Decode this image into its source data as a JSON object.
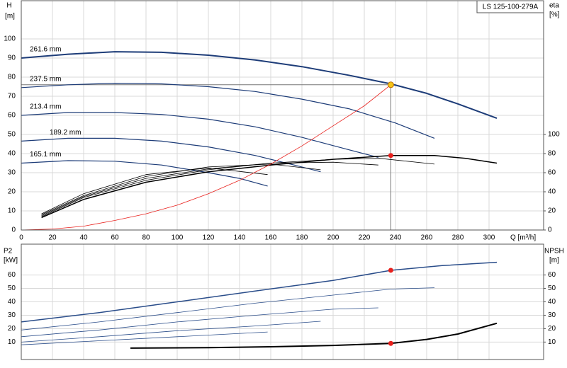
{
  "chart_data": [
    {
      "type": "line",
      "title": "LS 125-100-279A",
      "ylabel": "H",
      "yunit": "[m]",
      "y2label": "eta",
      "y2unit": "[%]",
      "xlabel": "Q [m³/h]",
      "xlim": [
        0,
        335
      ],
      "xticks": [
        0,
        20,
        40,
        60,
        80,
        100,
        120,
        140,
        160,
        180,
        200,
        220,
        240,
        260,
        280,
        300
      ],
      "ylim": [
        0,
        120
      ],
      "yticks": [
        0,
        10,
        20,
        30,
        40,
        50,
        60,
        70,
        80,
        90,
        100
      ],
      "y2lim": [
        0,
        240
      ],
      "y2ticks": [
        0,
        20,
        40,
        60,
        80,
        100
      ],
      "grid": true,
      "series": [
        {
          "name": "261.6 mm",
          "color": "#1d3c78",
          "width": 2,
          "x": [
            0,
            30,
            60,
            90,
            120,
            150,
            180,
            210,
            237,
            260,
            280,
            305
          ],
          "values": [
            90,
            92,
            93.3,
            93,
            91.5,
            89,
            85.5,
            81,
            76.5,
            71.5,
            66,
            58.5
          ]
        },
        {
          "name": "237.5 mm",
          "color": "#1d3c78",
          "width": 1.2,
          "x": [
            0,
            30,
            60,
            90,
            120,
            150,
            180,
            210,
            240,
            265
          ],
          "values": [
            74.5,
            76,
            76.8,
            76.5,
            75,
            72.5,
            68.5,
            63.5,
            56,
            48
          ]
        },
        {
          "name": "213.4 mm",
          "color": "#1d3c78",
          "width": 1.2,
          "x": [
            0,
            30,
            60,
            90,
            120,
            150,
            180,
            210,
            229
          ],
          "values": [
            60,
            61.5,
            61.5,
            60.5,
            58,
            54,
            48.5,
            42,
            38
          ]
        },
        {
          "name": "189.2 mm",
          "color": "#1d3c78",
          "width": 1.2,
          "x": [
            0,
            30,
            60,
            90,
            120,
            150,
            175,
            192
          ],
          "values": [
            46.5,
            48,
            48,
            46.5,
            43.5,
            39,
            34,
            30.5
          ]
        },
        {
          "name": "165.1 mm",
          "color": "#1d3c78",
          "width": 1.2,
          "x": [
            0,
            30,
            60,
            90,
            120,
            140,
            158
          ],
          "values": [
            35,
            36.3,
            36,
            34,
            30,
            27,
            23
          ]
        },
        {
          "axis": "y2",
          "color": "#000000",
          "width": 1.5,
          "x": [
            13,
            40,
            80,
            120,
            160,
            200,
            237,
            265,
            285,
            305
          ],
          "values": [
            13,
            32,
            50,
            61,
            68,
            74,
            78,
            78,
            75,
            70
          ]
        },
        {
          "axis": "y2",
          "color": "#000000",
          "width": 0.8,
          "x": [
            13,
            40,
            80,
            120,
            160,
            200,
            230,
            265
          ],
          "values": [
            14,
            34,
            52,
            63,
            70,
            74,
            75,
            69
          ]
        },
        {
          "axis": "y2",
          "color": "#000000",
          "width": 0.8,
          "x": [
            13,
            40,
            80,
            120,
            160,
            200,
            229
          ],
          "values": [
            15,
            35,
            54,
            64,
            70,
            71,
            68
          ]
        },
        {
          "axis": "y2",
          "color": "#000000",
          "width": 0.8,
          "x": [
            13,
            40,
            80,
            120,
            160,
            192
          ],
          "values": [
            16,
            36,
            56,
            66,
            69,
            63
          ]
        },
        {
          "axis": "y2",
          "color": "#000000",
          "width": 0.8,
          "x": [
            13,
            40,
            80,
            120,
            158
          ],
          "values": [
            17,
            38,
            58,
            65,
            58
          ]
        },
        {
          "color": "#e8201c",
          "width": 0.8,
          "x": [
            0,
            20,
            40,
            60,
            80,
            100,
            120,
            140,
            160,
            180,
            200,
            220,
            237
          ],
          "values": [
            0,
            0.5,
            2,
            5,
            8.5,
            13,
            19,
            26,
            34.5,
            44,
            54.5,
            65,
            76
          ]
        }
      ],
      "operating_point": {
        "x": 237,
        "y": 76,
        "color": "#f5c518"
      },
      "points": [
        {
          "x": 237,
          "y": 78,
          "axis": "y2",
          "color": "#e8201c"
        }
      ]
    },
    {
      "type": "line",
      "ylabel": "P2",
      "yunit": "[kW]",
      "y2label": "NPSH",
      "y2unit": "[m]",
      "xlim": [
        0,
        335
      ],
      "xticks": [
        0,
        20,
        40,
        60,
        80,
        100,
        120,
        140,
        160,
        180,
        200,
        220,
        240,
        260,
        280,
        300
      ],
      "ylim": [
        -3,
        83
      ],
      "yticks": [
        10,
        20,
        30,
        40,
        50,
        60
      ],
      "y2lim": [
        -3,
        83
      ],
      "y2ticks": [
        10,
        20,
        30,
        40,
        50,
        60
      ],
      "grid": true,
      "series": [
        {
          "color": "#2a4d8a",
          "width": 1.5,
          "x": [
            0,
            50,
            100,
            150,
            200,
            237,
            270,
            305
          ],
          "values": [
            25,
            32,
            40,
            48,
            56,
            63.5,
            67,
            69.5
          ]
        },
        {
          "color": "#2a4d8a",
          "width": 0.8,
          "x": [
            0,
            50,
            100,
            150,
            200,
            237,
            265
          ],
          "values": [
            19,
            25,
            32,
            39,
            45,
            49.5,
            50.5
          ]
        },
        {
          "color": "#2a4d8a",
          "width": 0.8,
          "x": [
            0,
            50,
            100,
            150,
            200,
            229
          ],
          "values": [
            14,
            19,
            25,
            30,
            34.5,
            35.5
          ]
        },
        {
          "color": "#2a4d8a",
          "width": 0.8,
          "x": [
            0,
            50,
            100,
            150,
            192
          ],
          "values": [
            10,
            14,
            18.5,
            22,
            25.5
          ]
        },
        {
          "color": "#2a4d8a",
          "width": 0.8,
          "x": [
            0,
            50,
            100,
            158
          ],
          "values": [
            8,
            11,
            14,
            17.5
          ]
        },
        {
          "axis": "y2",
          "color": "#000000",
          "width": 2,
          "x": [
            70,
            120,
            160,
            200,
            237,
            260,
            280,
            305
          ],
          "values": [
            5.5,
            5.8,
            6.5,
            7.5,
            9,
            12,
            16,
            24
          ]
        }
      ],
      "points": [
        {
          "x": 237,
          "y": 63.5,
          "color": "#e8201c"
        },
        {
          "x": 237,
          "y": 9,
          "axis": "y2",
          "color": "#e8201c"
        }
      ]
    }
  ]
}
